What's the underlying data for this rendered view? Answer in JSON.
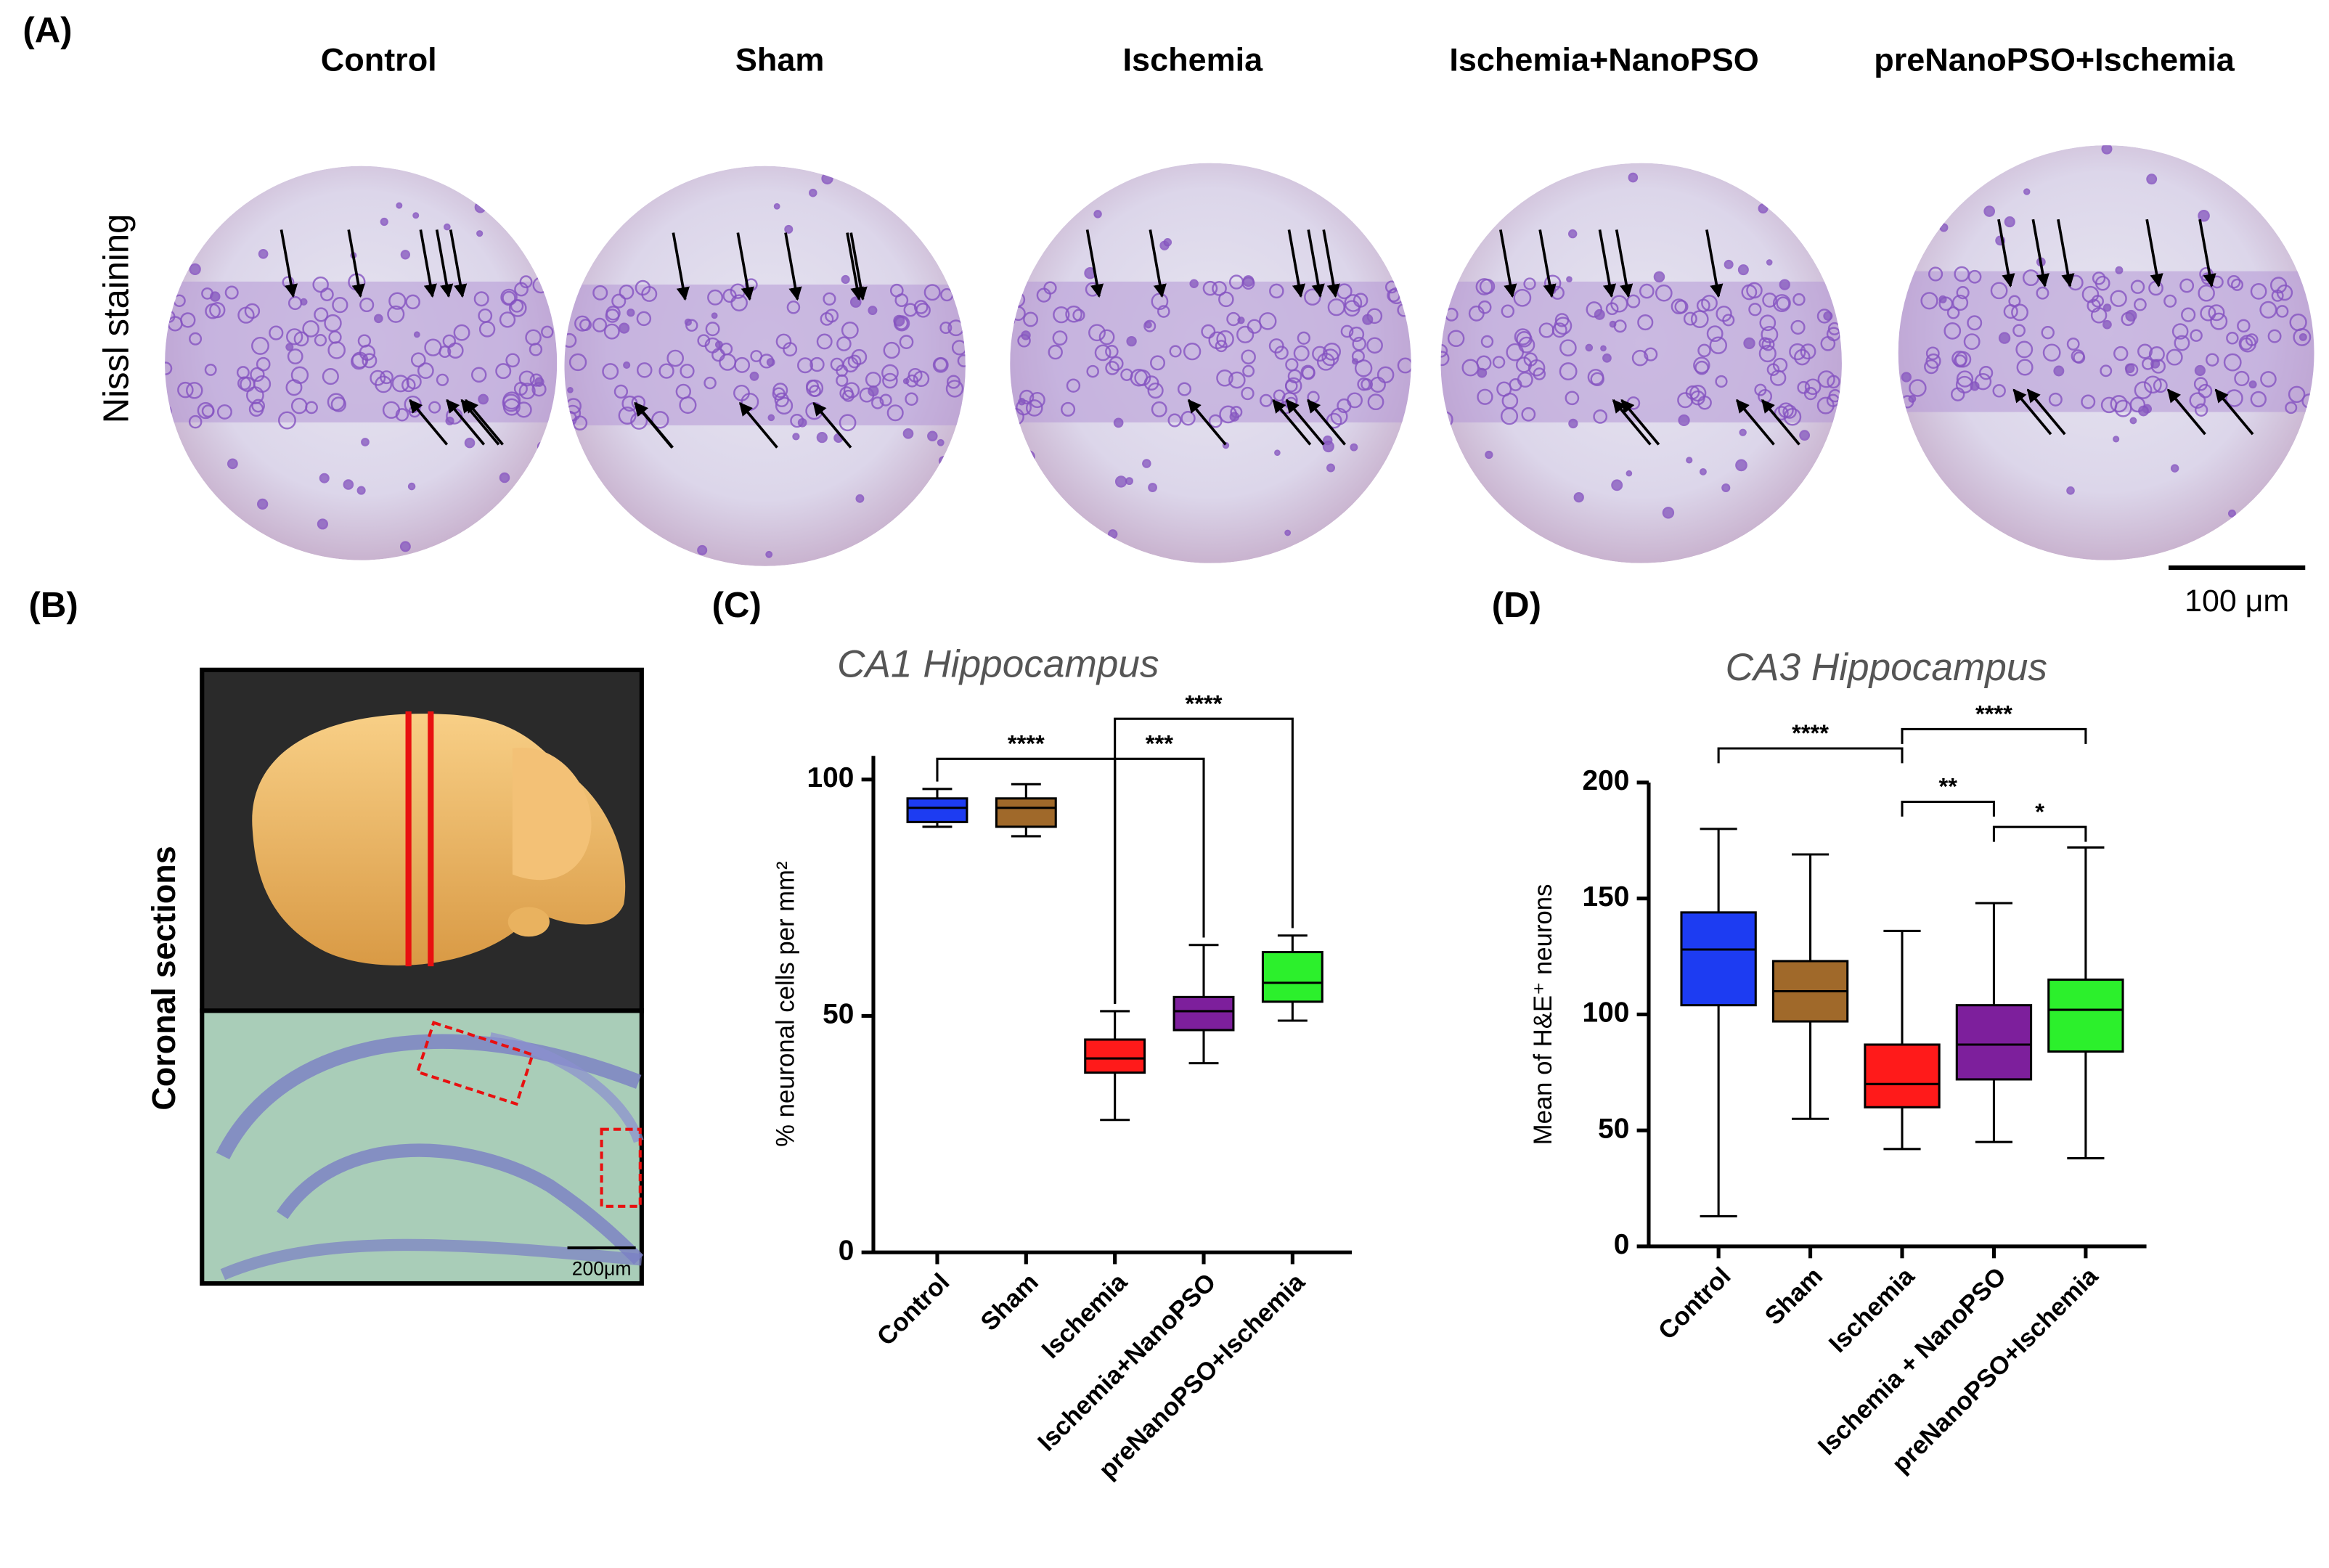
{
  "panel_a": {
    "label": "(A)",
    "titles": [
      "Control",
      "Sham",
      "Ischemia",
      "Ischemia+NanoPSO",
      "preNanoPSO+Ischemia"
    ],
    "ylabel": "Nissl staining",
    "scale_bar": "100 μm"
  },
  "panel_b": {
    "label": "(B)",
    "ylabel": "Coronal sections",
    "scale_bar": "200μm"
  },
  "chart_data": [
    {
      "type": "box",
      "label": "(C)",
      "title": "CA1 Hippocampus",
      "ylabel": "% neuronal cells per mm²",
      "categories": [
        "Control",
        "Sham",
        "Ischemia",
        "Ischemia+NanoPSO",
        "preNanoPSO+Ischemia"
      ],
      "colors": [
        "#1d3cf2",
        "#a0692a",
        "#ff1a1a",
        "#7d1f9c",
        "#2cf02c"
      ],
      "min": [
        90,
        88,
        28,
        40,
        49
      ],
      "q1": [
        91,
        90,
        38,
        47,
        53
      ],
      "median": [
        94,
        94,
        41,
        51,
        57
      ],
      "q3": [
        96,
        96,
        45,
        54,
        63.5
      ],
      "max": [
        98,
        99,
        51,
        65,
        67
      ],
      "ylim": [
        0,
        105
      ],
      "yticks": [
        0,
        50,
        100
      ],
      "annotations": [
        {
          "text": "****",
          "from": "Control",
          "to": "Ischemia"
        },
        {
          "text": "***",
          "from": "Ischemia",
          "to": "Ischemia+NanoPSO"
        },
        {
          "text": "****",
          "from": "Ischemia",
          "to": "preNanoPSO+Ischemia"
        }
      ]
    },
    {
      "type": "box",
      "label": "(D)",
      "title": "CA3 Hippocampus",
      "ylabel": "Mean of  H&E⁺ neurons",
      "categories": [
        "Control",
        "Sham",
        "Ischemia",
        "Ischemia + NanoPSO",
        "preNanoPSO+Ischemia"
      ],
      "colors": [
        "#1d3cf2",
        "#a0692a",
        "#ff1a1a",
        "#7d1f9c",
        "#2cf02c"
      ],
      "min": [
        13,
        55,
        42,
        45,
        38
      ],
      "q1": [
        104,
        97,
        60,
        72,
        84
      ],
      "median": [
        128,
        110,
        70,
        87,
        102
      ],
      "q3": [
        144,
        123,
        87,
        104,
        115
      ],
      "max": [
        180,
        169,
        136,
        148,
        172
      ],
      "ylim": [
        0,
        200
      ],
      "yticks": [
        0,
        50,
        100,
        150,
        200
      ],
      "annotations": [
        {
          "text": "****",
          "from": "Control",
          "to": "Ischemia"
        },
        {
          "text": "****",
          "from": "Ischemia",
          "to": "preNanoPSO+Ischemia"
        },
        {
          "text": "**",
          "from": "Ischemia",
          "to": "Ischemia + NanoPSO"
        },
        {
          "text": "*",
          "from": "Ischemia + NanoPSO",
          "to": "preNanoPSO+Ischemia"
        }
      ]
    }
  ]
}
